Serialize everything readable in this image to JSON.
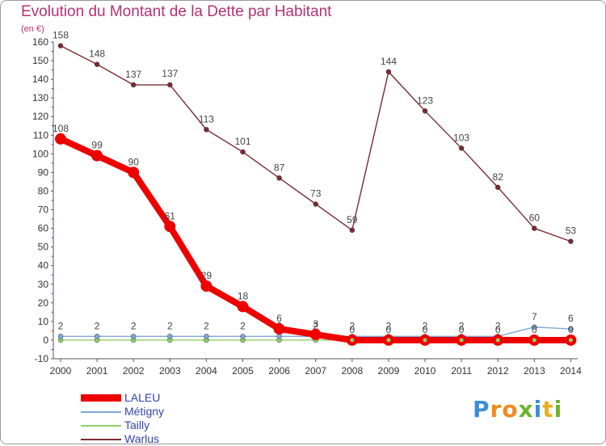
{
  "title": "Evolution du Montant de la Dette par Habitant",
  "unit_label": "(en €)",
  "brand": {
    "letters": [
      "P",
      "r",
      "o",
      "x",
      "i",
      "t",
      "i"
    ],
    "colors": [
      "#3a8fd6",
      "#f08a1c",
      "#f08a1c",
      "#6ab42d",
      "#3a8fd6",
      "#e8b01a",
      "#6ab42d"
    ]
  },
  "chart_data": {
    "type": "line",
    "title": "Evolution du Montant de la Dette par Habitant",
    "ylabel": "(en €)",
    "xlabel": "",
    "ylim": [
      -10,
      160
    ],
    "y_ticks": [
      -10,
      0,
      10,
      20,
      30,
      40,
      50,
      60,
      70,
      80,
      90,
      100,
      110,
      120,
      130,
      140,
      150,
      160
    ],
    "categories": [
      "2000",
      "2001",
      "2002",
      "2003",
      "2004",
      "2005",
      "2006",
      "2007",
      "2008",
      "2009",
      "2010",
      "2011",
      "2012",
      "2013",
      "2014"
    ],
    "legend_position": "bottom-left",
    "grid": false,
    "series": [
      {
        "name": "Warlus",
        "color": "#7b2a33",
        "values": [
          158,
          148,
          137,
          137,
          113,
          101,
          87,
          73,
          59,
          144,
          123,
          103,
          82,
          60,
          53
        ],
        "labels": [
          "158",
          "148",
          "137",
          "137",
          "113",
          "101",
          "87",
          "73",
          "59",
          "144",
          "123",
          "103",
          "82",
          "60",
          "53"
        ]
      },
      {
        "name": "Tailly",
        "color": "#8fd16a",
        "values": [
          0,
          0,
          0,
          0,
          0,
          0,
          0,
          0,
          0,
          0,
          0,
          0,
          0,
          0,
          0
        ],
        "labels": []
      },
      {
        "name": "Métigny",
        "color": "#7fa8d8",
        "values": [
          2,
          2,
          2,
          2,
          2,
          2,
          2,
          2,
          2,
          2,
          2,
          2,
          2,
          7,
          6
        ],
        "labels": [
          "2",
          "2",
          "2",
          "2",
          "2",
          "2",
          "2",
          "2",
          "2",
          "2",
          "2",
          "2",
          "2",
          "7",
          "6"
        ]
      },
      {
        "name": "LALEU",
        "color": "#ee0000",
        "values": [
          108,
          99,
          90,
          61,
          29,
          18,
          6,
          3,
          0,
          0,
          0,
          0,
          0,
          0,
          0
        ],
        "labels": [
          "108",
          "99",
          "90",
          "61",
          "29",
          "18",
          "6",
          "3",
          "0",
          "0",
          "0",
          "0",
          "0",
          "0",
          "0"
        ]
      }
    ]
  }
}
